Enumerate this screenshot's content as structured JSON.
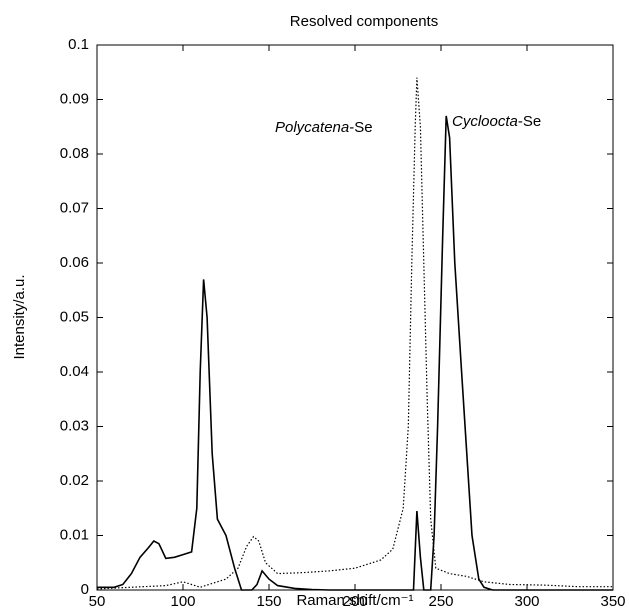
{
  "chart_data": {
    "type": "line",
    "title": "Resolved components",
    "xlabel": "Raman shift/cm⁻¹",
    "ylabel": "Intensity/a.u.",
    "xlim": [
      50,
      350
    ],
    "xticks": [
      50,
      100,
      150,
      200,
      250,
      300,
      350
    ],
    "ylim": [
      0,
      0.1
    ],
    "yticks": [
      0,
      0.01,
      0.02,
      0.03,
      0.04,
      0.05,
      0.06,
      0.07,
      0.08,
      0.09,
      0.1
    ],
    "annotations": [
      {
        "parts": [
          "Polycatena",
          "-Se"
        ]
      },
      {
        "parts": [
          "Cycloocta",
          "-Se"
        ]
      }
    ],
    "series": [
      {
        "color": "#000000",
        "style": "solid",
        "x": [
          50,
          60,
          65,
          70,
          75,
          80,
          83,
          86,
          90,
          95,
          100,
          105,
          108,
          110,
          112,
          114,
          117,
          120,
          125,
          130,
          134,
          140,
          143,
          146,
          150,
          155,
          165,
          175,
          185,
          200,
          230,
          234,
          236,
          238,
          240,
          244,
          246,
          248,
          251,
          253,
          255,
          258,
          262,
          265,
          268,
          272,
          275,
          280,
          350
        ],
        "values": [
          0.0005,
          0.0005,
          0.001,
          0.003,
          0.006,
          0.0078,
          0.009,
          0.0085,
          0.0058,
          0.006,
          0.0065,
          0.007,
          0.015,
          0.04,
          0.057,
          0.05,
          0.025,
          0.013,
          0.01,
          0.004,
          0,
          0,
          0.001,
          0.0035,
          0.002,
          0.0008,
          0.0003,
          0.0001,
          0,
          0,
          0,
          0,
          0.0145,
          0.006,
          0,
          0,
          0.01,
          0.03,
          0.065,
          0.087,
          0.083,
          0.06,
          0.04,
          0.025,
          0.01,
          0.002,
          0.0005,
          0,
          0
        ]
      },
      {
        "color": "#000000",
        "style": "dotted",
        "x": [
          50,
          90,
          100,
          105,
          110,
          115,
          125,
          132,
          137,
          141,
          144,
          148,
          155,
          170,
          185,
          200,
          215,
          222,
          228,
          231,
          233,
          235,
          236,
          238,
          240,
          242,
          244,
          247,
          255,
          265,
          275,
          290,
          310,
          330,
          350
        ],
        "values": [
          0.0002,
          0.0008,
          0.0015,
          0.001,
          0.0005,
          0.001,
          0.002,
          0.004,
          0.008,
          0.0098,
          0.009,
          0.005,
          0.003,
          0.0032,
          0.0035,
          0.004,
          0.0055,
          0.0075,
          0.015,
          0.03,
          0.06,
          0.085,
          0.094,
          0.085,
          0.06,
          0.035,
          0.013,
          0.004,
          0.003,
          0.0025,
          0.0015,
          0.001,
          0.0009,
          0.0006,
          0.0006
        ]
      }
    ]
  }
}
